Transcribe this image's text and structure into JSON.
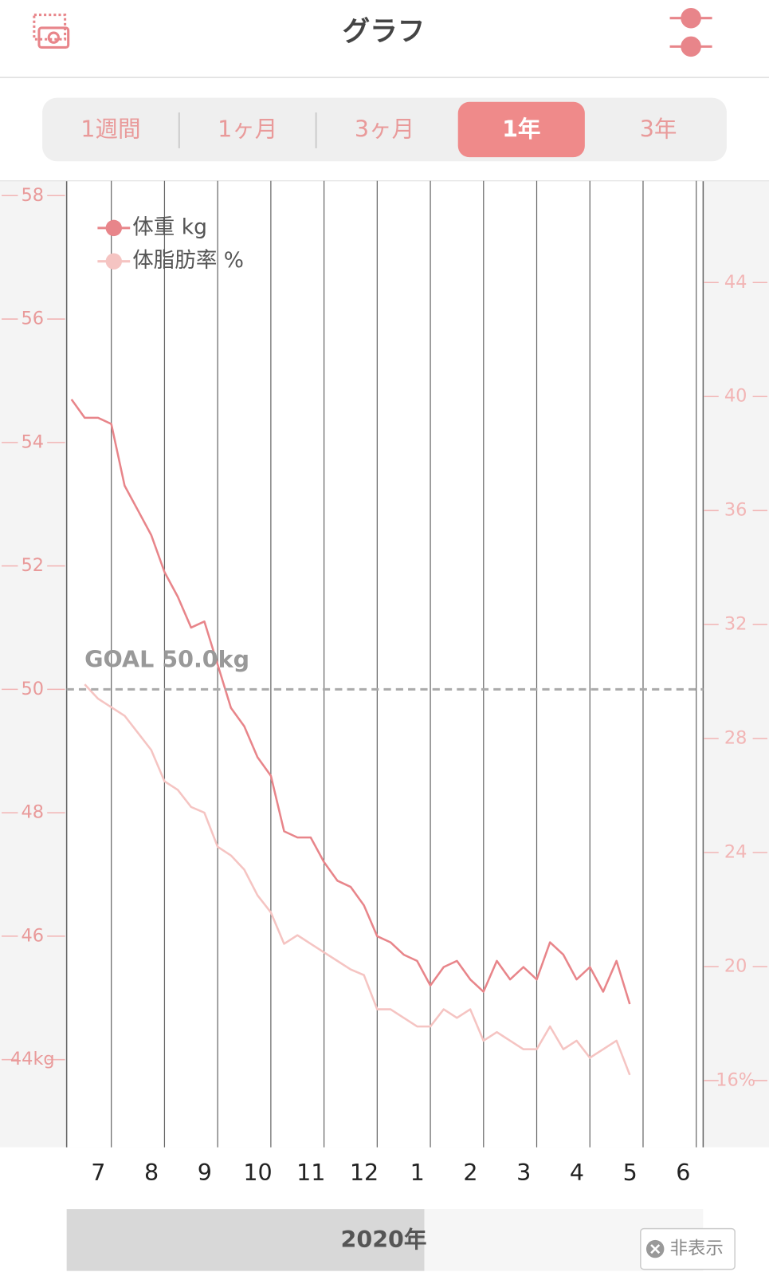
{
  "header": {
    "title": "グラフ"
  },
  "tabs": {
    "items": [
      "1週間",
      "1ヶ月",
      "3ヶ月",
      "1年",
      "3年"
    ],
    "active": 3
  },
  "chart_data": {
    "type": "line",
    "x": [
      -0.75,
      -0.5,
      -0.25,
      0,
      0.25,
      0.5,
      0.75,
      1,
      1.25,
      1.5,
      1.75,
      2,
      2.25,
      2.5,
      2.75,
      3,
      3.25,
      3.5,
      3.75,
      4,
      4.25,
      4.5,
      4.75,
      5,
      5.25,
      5.5,
      5.75,
      6,
      6.25,
      6.5,
      6.75,
      7,
      7.25,
      7.5,
      7.75,
      8,
      8.25,
      8.5,
      8.75,
      9,
      9.25,
      9.5,
      9.75
    ],
    "xlim": [
      -0.84,
      11.13
    ],
    "xticks": [
      {
        "value": 0,
        "label": "7"
      },
      {
        "value": 1,
        "label": "8"
      },
      {
        "value": 2,
        "label": "9"
      },
      {
        "value": 3,
        "label": "10"
      },
      {
        "value": 4,
        "label": "11"
      },
      {
        "value": 5,
        "label": "12"
      },
      {
        "value": 6,
        "label": "1"
      },
      {
        "value": 7,
        "label": "2"
      },
      {
        "value": 8,
        "label": "3"
      },
      {
        "value": 9,
        "label": "4"
      },
      {
        "value": 10,
        "label": "5"
      },
      {
        "value": 11,
        "label": "6"
      }
    ],
    "ylim": [
      42.58,
      58.24
    ],
    "yticks": [
      {
        "value": 44,
        "label": "44kg"
      },
      46,
      48,
      50,
      52,
      54,
      56,
      58
    ],
    "y2lim": [
      13.66,
      47.57
    ],
    "y2ticks": [
      {
        "value": 16,
        "label": "16%"
      },
      20,
      24,
      28,
      32,
      36,
      40,
      44
    ],
    "series": [
      {
        "name": "体重 kg",
        "color": "#e8858a",
        "values": [
          54.7,
          54.4,
          54.4,
          54.3,
          53.3,
          52.9,
          52.5,
          51.9,
          51.5,
          51.0,
          51.1,
          50.4,
          49.7,
          49.4,
          48.9,
          48.6,
          47.7,
          47.6,
          47.6,
          47.2,
          46.9,
          46.8,
          46.5,
          46.0,
          45.9,
          45.7,
          45.6,
          45.2,
          45.5,
          45.6,
          45.3,
          45.1,
          45.6,
          45.3,
          45.5,
          45.3,
          45.9,
          45.7,
          45.3,
          45.5,
          45.1,
          45.6,
          44.9
        ]
      },
      {
        "name": "体脂肪率 %",
        "color": "#f5c4c2",
        "axis": "y2",
        "values": [
          null,
          29.9,
          29.4,
          29.1,
          28.8,
          28.2,
          27.6,
          26.5,
          26.2,
          25.6,
          25.4,
          24.2,
          23.9,
          23.4,
          22.5,
          21.9,
          20.8,
          21.1,
          20.8,
          20.5,
          20.2,
          19.9,
          19.7,
          18.5,
          18.5,
          18.2,
          17.9,
          17.9,
          18.5,
          18.2,
          18.5,
          17.4,
          17.7,
          17.4,
          17.1,
          17.1,
          17.9,
          17.1,
          17.4,
          16.8,
          17.1,
          17.4,
          16.2
        ]
      }
    ],
    "goal": {
      "value": 50,
      "label": "GOAL 50.0kg"
    },
    "legend": "top-left",
    "year_label": "2020年"
  },
  "hide_button": "非表示"
}
